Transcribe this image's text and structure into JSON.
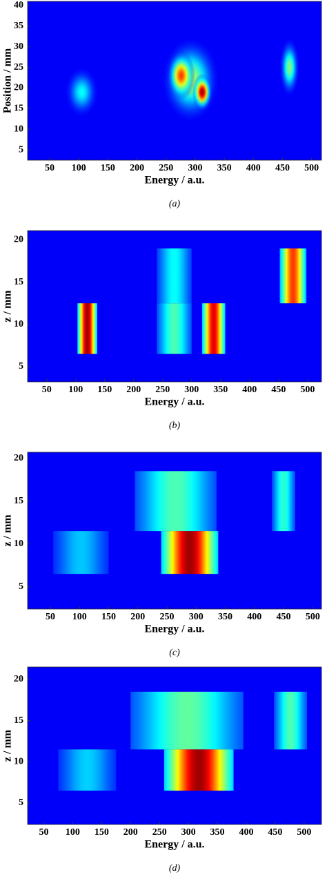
{
  "chart_data": [
    {
      "type": "heatmap",
      "caption": "(a)",
      "xlabel": "Energy / a.u.",
      "ylabel": "Position / mm",
      "xlim": [
        12,
        517
      ],
      "ylim": [
        2.5,
        41
      ],
      "xticks": [
        50,
        100,
        150,
        200,
        250,
        300,
        350,
        400,
        450,
        500
      ],
      "yticks": [
        5,
        10,
        15,
        20,
        25,
        30,
        35,
        40
      ],
      "background": 0.12,
      "blobs": [
        {
          "x": 105,
          "y": 19,
          "rx": 28,
          "ry": 6,
          "value": 0.38
        },
        {
          "x": 292,
          "y": 22,
          "rx": 48,
          "ry": 10,
          "value": 0.55
        },
        {
          "x": 276,
          "y": 23,
          "rx": 24,
          "ry": 6,
          "value": 0.82
        },
        {
          "x": 312,
          "y": 19,
          "rx": 17,
          "ry": 4.5,
          "value": 0.97
        },
        {
          "x": 462,
          "y": 25,
          "rx": 17,
          "ry": 7,
          "value": 0.5
        }
      ]
    },
    {
      "type": "heatmap",
      "caption": "(b)",
      "xlabel": "Energy / a.u.",
      "ylabel": "z / mm",
      "xlim": [
        17,
        524
      ],
      "ylim": [
        3.2,
        21.1
      ],
      "xticks": [
        50,
        100,
        150,
        200,
        250,
        300,
        350,
        400,
        450,
        500
      ],
      "yticks": [
        5,
        10,
        15,
        20
      ],
      "background": 0.12,
      "rects": [
        {
          "x": [
            103,
            137
          ],
          "y": [
            6.5,
            12.5
          ],
          "value": 0.97
        },
        {
          "x": [
            240,
            300
          ],
          "y": [
            12.5,
            19
          ],
          "value": 0.38
        },
        {
          "x": [
            240,
            300
          ],
          "y": [
            6.5,
            12.5
          ],
          "value": 0.45
        },
        {
          "x": [
            318,
            358
          ],
          "y": [
            6.5,
            12.5
          ],
          "value": 0.9
        },
        {
          "x": [
            452,
            498
          ],
          "y": [
            12.5,
            19
          ],
          "value": 0.82
        }
      ]
    },
    {
      "type": "heatmap",
      "caption": "(c)",
      "xlabel": "Energy / a.u.",
      "ylabel": "z / mm",
      "xlim": [
        11,
        515
      ],
      "ylim": [
        2.4,
        20.7
      ],
      "xticks": [
        50,
        100,
        150,
        200,
        250,
        300,
        350,
        400,
        450,
        500
      ],
      "yticks": [
        5,
        10,
        15,
        20
      ],
      "background": 0.12,
      "rects": [
        {
          "x": [
            55,
            150
          ],
          "y": [
            6.5,
            11.5
          ],
          "value": 0.32
        },
        {
          "x": [
            195,
            335
          ],
          "y": [
            11.5,
            18.5
          ],
          "value": 0.45
        },
        {
          "x": [
            240,
            338
          ],
          "y": [
            6.5,
            11.5
          ],
          "value": 0.97
        },
        {
          "x": [
            430,
            470
          ],
          "y": [
            11.5,
            18.5
          ],
          "value": 0.42
        }
      ]
    },
    {
      "type": "heatmap",
      "caption": "(d)",
      "xlabel": "Energy / a.u.",
      "ylabel": "z / mm",
      "xlim": [
        22,
        530
      ],
      "ylim": [
        2.4,
        21.5
      ],
      "xticks": [
        50,
        100,
        150,
        200,
        250,
        300,
        350,
        400,
        450,
        500
      ],
      "yticks": [
        5,
        10,
        15,
        20
      ],
      "background": 0.12,
      "rects": [
        {
          "x": [
            75,
            175
          ],
          "y": [
            6.5,
            11.5
          ],
          "value": 0.33
        },
        {
          "x": [
            200,
            395
          ],
          "y": [
            11.5,
            18.5
          ],
          "value": 0.47
        },
        {
          "x": [
            258,
            378
          ],
          "y": [
            6.5,
            11.5
          ],
          "value": 0.97
        },
        {
          "x": [
            448,
            505
          ],
          "y": [
            11.5,
            18.5
          ],
          "value": 0.45
        }
      ]
    }
  ]
}
